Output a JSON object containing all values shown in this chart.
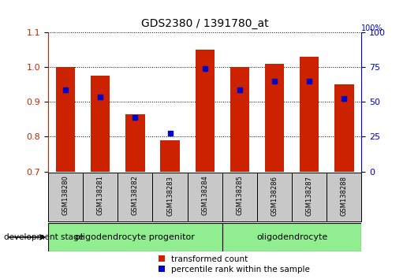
{
  "title": "GDS2380 / 1391780_at",
  "samples": [
    "GSM138280",
    "GSM138281",
    "GSM138282",
    "GSM138283",
    "GSM138284",
    "GSM138285",
    "GSM138286",
    "GSM138287",
    "GSM138288"
  ],
  "red_bar_tops": [
    1.0,
    0.975,
    0.865,
    0.79,
    1.05,
    1.0,
    1.01,
    1.03,
    0.95
  ],
  "blue_dot_values": [
    0.935,
    0.915,
    0.855,
    0.81,
    0.995,
    0.935,
    0.96,
    0.96,
    0.91
  ],
  "bar_bottom": 0.7,
  "ylim_left": [
    0.7,
    1.1
  ],
  "ylim_right": [
    0,
    100
  ],
  "yticks_left": [
    0.7,
    0.8,
    0.9,
    1.0,
    1.1
  ],
  "yticks_right": [
    0,
    25,
    50,
    75,
    100
  ],
  "red_color": "#cc2200",
  "blue_color": "#0000cc",
  "bar_width": 0.55,
  "group1_label": "oligodendrocyte progenitor",
  "group2_label": "oligodendrocyte",
  "group_color": "#90ee90",
  "sample_box_color": "#c8c8c8",
  "legend_red": "transformed count",
  "legend_blue": "percentile rank within the sample",
  "dev_stage_label": "development stage",
  "pct_label": "100%"
}
